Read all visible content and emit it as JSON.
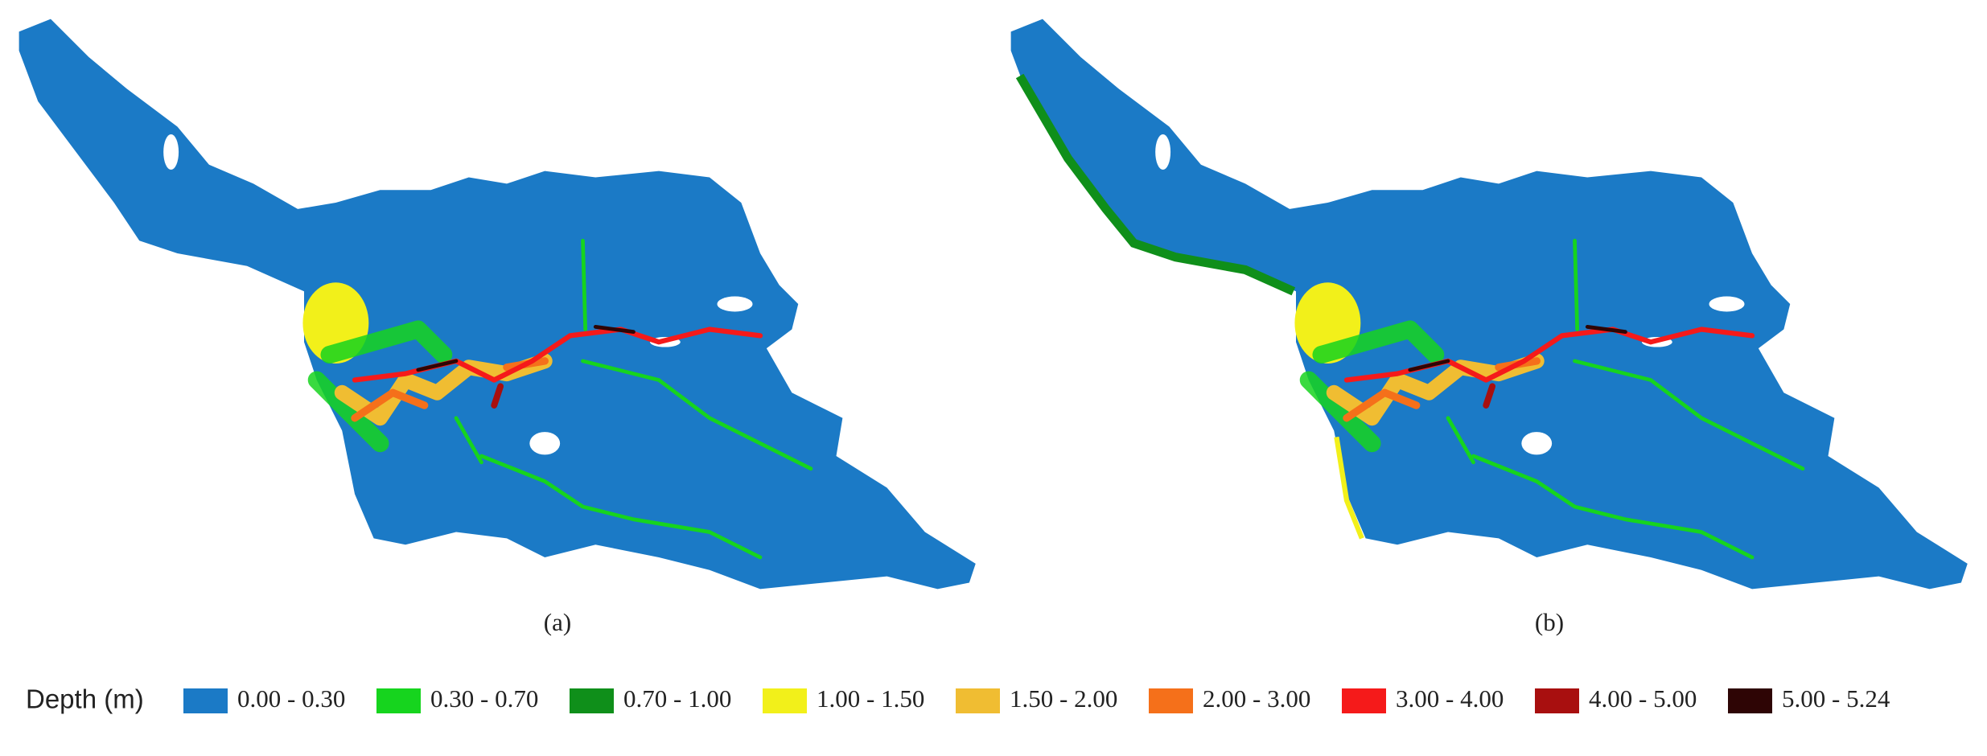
{
  "panels": [
    {
      "label": "(a)"
    },
    {
      "label": "(b)"
    }
  ],
  "legend": {
    "title": "Depth (m)",
    "items": [
      {
        "label": "0.00 - 0.30",
        "color": "#1b7ac6"
      },
      {
        "label": "0.30 - 0.70",
        "color": "#16d41e"
      },
      {
        "label": "0.70 - 1.00",
        "color": "#0f8f1a"
      },
      {
        "label": "1.00 - 1.50",
        "color": "#f2f01a"
      },
      {
        "label": "1.50 - 2.00",
        "color": "#f0bd32"
      },
      {
        "label": "2.00 - 3.00",
        "color": "#f5701a"
      },
      {
        "label": "3.00 - 4.00",
        "color": "#f51a1a"
      },
      {
        "label": "4.00 - 5.00",
        "color": "#a80f0f"
      },
      {
        "label": "5.00 - 5.24",
        "color": "#2e0505"
      }
    ]
  }
}
